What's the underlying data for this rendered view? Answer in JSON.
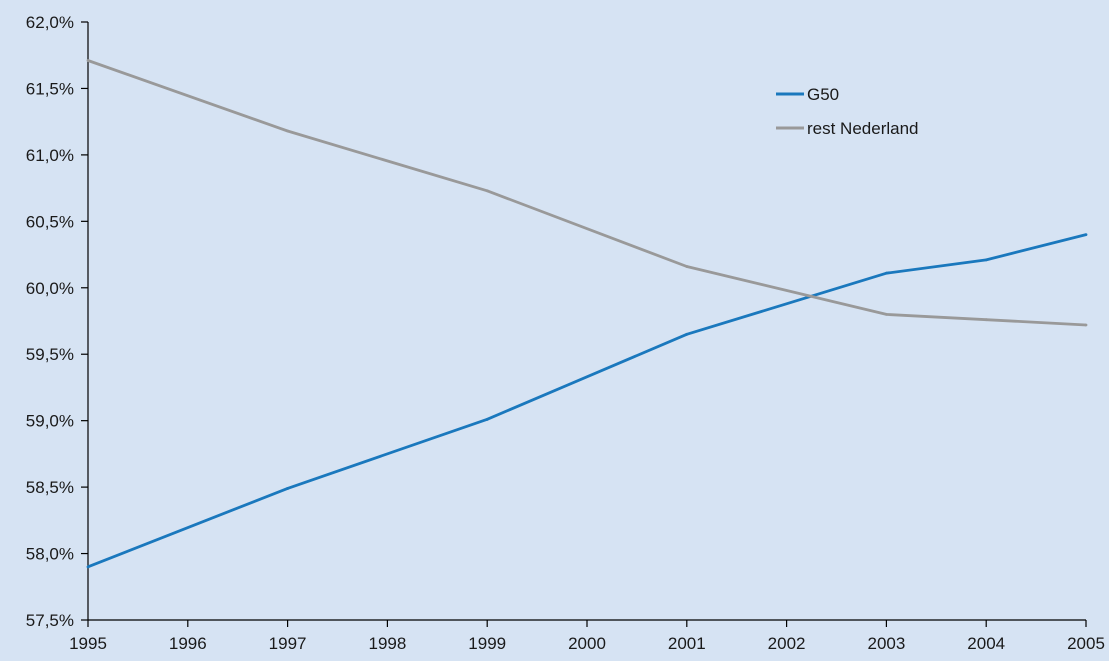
{
  "chart_data": {
    "type": "line",
    "title": "",
    "xlabel": "",
    "ylabel": "",
    "x": [
      "1995",
      "1996",
      "1997",
      "1998",
      "1999",
      "2000",
      "2001",
      "2002",
      "2003",
      "2004",
      "2005"
    ],
    "ylim": [
      57.5,
      62.0
    ],
    "y_ticks": [
      "57,5%",
      "58,0%",
      "58,5%",
      "59,0%",
      "59,5%",
      "60,0%",
      "60,5%",
      "61,0%",
      "61,5%",
      "62,0%"
    ],
    "grid": false,
    "legend_position": "top-right",
    "series": [
      {
        "name": "G50",
        "color": "#1a78bd",
        "points": [
          [
            1995,
            57.9
          ],
          [
            1997,
            58.49
          ],
          [
            1999,
            59.01
          ],
          [
            2001,
            59.65
          ],
          [
            2003,
            60.11
          ],
          [
            2004,
            60.21
          ],
          [
            2005,
            60.4
          ]
        ]
      },
      {
        "name": "rest Nederland",
        "color": "#999999",
        "points": [
          [
            1995,
            61.71
          ],
          [
            1997,
            61.18
          ],
          [
            1999,
            60.73
          ],
          [
            2001,
            60.16
          ],
          [
            2003,
            59.8
          ],
          [
            2004,
            59.76
          ],
          [
            2005,
            59.72
          ]
        ]
      }
    ]
  }
}
